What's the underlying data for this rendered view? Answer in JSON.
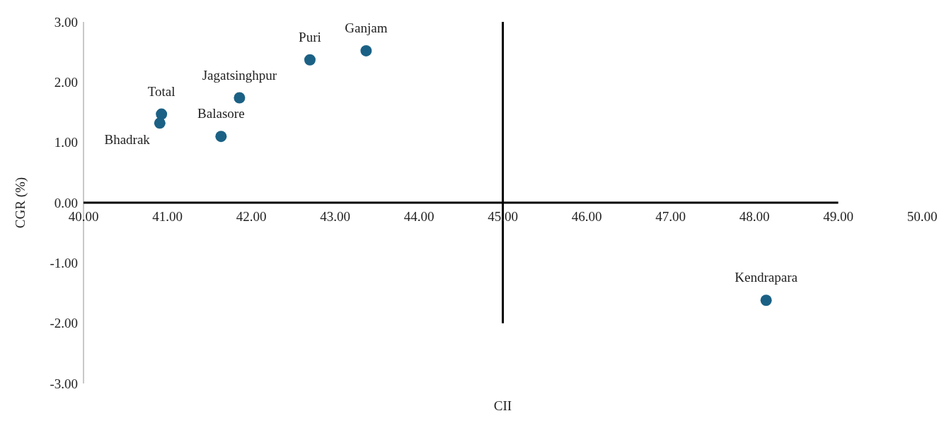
{
  "chart_data": {
    "type": "scatter",
    "xlabel": "CII",
    "ylabel": "CGR (%)",
    "x": [
      40.93,
      40.91,
      41.64,
      41.86,
      42.7,
      43.37,
      48.14
    ],
    "series": [
      {
        "color": "#1b6185",
        "marker": "circle",
        "values": [
          1.47,
          1.32,
          1.1,
          1.74,
          2.37,
          2.52,
          -1.62
        ]
      },
      {
        "type": "line",
        "color": "#000000",
        "marker": "none",
        "x": [
          45,
          45
        ],
        "values": [
          -2,
          3
        ]
      },
      {
        "type": "line",
        "color": "#000000",
        "marker": "none",
        "x": [
          40,
          49
        ],
        "values": [
          0,
          0
        ]
      }
    ],
    "xlim": [
      40,
      50
    ],
    "xticks": [
      {
        "value": 40,
        "label": "40.00"
      },
      {
        "value": 41,
        "label": "41.00"
      },
      {
        "value": 42,
        "label": "42.00"
      },
      {
        "value": 43,
        "label": "43.00"
      },
      {
        "value": 44,
        "label": "44.00"
      },
      {
        "value": 45,
        "label": "45.00"
      },
      {
        "value": 46,
        "label": "46.00"
      },
      {
        "value": 47,
        "label": "47.00"
      },
      {
        "value": 48,
        "label": "48.00"
      },
      {
        "value": 49,
        "label": "49.00"
      },
      {
        "value": 50,
        "label": "50.00"
      }
    ],
    "ylim": [
      -3,
      3
    ],
    "yticks": [
      {
        "value": -3,
        "label": "-3.00"
      },
      {
        "value": -2,
        "label": "-2.00"
      },
      {
        "value": -1,
        "label": "-1.00"
      },
      {
        "value": 0,
        "label": "0.00"
      },
      {
        "value": 1,
        "label": "1.00"
      },
      {
        "value": 2,
        "label": "2.00"
      },
      {
        "value": 3,
        "label": "3.00"
      }
    ],
    "annotations": [
      {
        "text": "Total",
        "x": 40.93,
        "y": 1.47
      },
      {
        "text": "Bhadrak",
        "x": 40.91,
        "y": 1.32
      },
      {
        "text": "Balasore",
        "x": 41.64,
        "y": 1.1
      },
      {
        "text": "Jagatsinghpur",
        "x": 41.86,
        "y": 1.74
      },
      {
        "text": "Puri",
        "x": 42.7,
        "y": 2.37
      },
      {
        "text": "Ganjam",
        "x": 43.37,
        "y": 2.52
      },
      {
        "text": "Kendrapara",
        "x": 48.14,
        "y": -1.62
      }
    ]
  }
}
